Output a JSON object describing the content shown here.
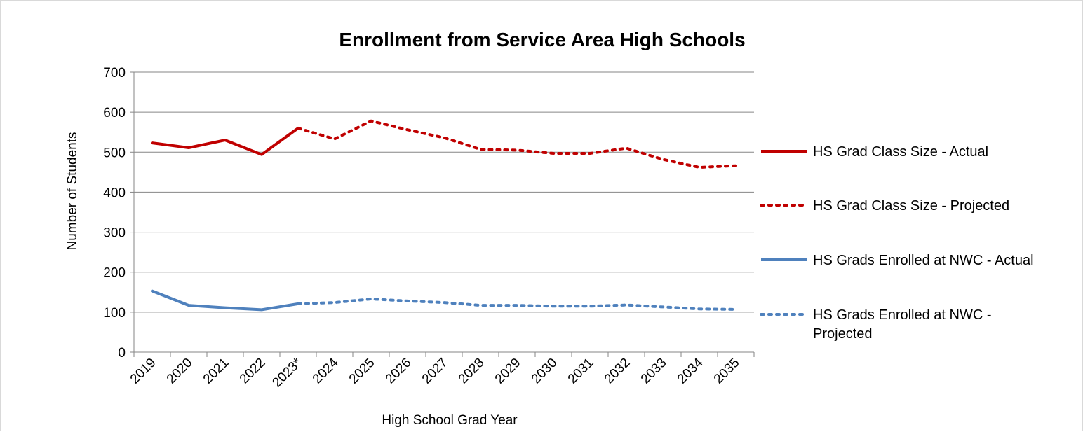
{
  "chart_data": {
    "type": "line",
    "title": "Enrollment from Service Area High Schools",
    "xlabel": "High School Grad Year",
    "ylabel": "Number of Students",
    "ylim": [
      0,
      700
    ],
    "ytick_step": 100,
    "yticks": [
      "0",
      "100",
      "200",
      "300",
      "400",
      "500",
      "600",
      "700"
    ],
    "categories": [
      "2019",
      "2020",
      "2021",
      "2022",
      "2023*",
      "2024",
      "2025",
      "2026",
      "2027",
      "2028",
      "2029",
      "2030",
      "2031",
      "2032",
      "2033",
      "2034",
      "2035"
    ],
    "grid": "horizontal",
    "legend_position": "right",
    "series": [
      {
        "name": "HS Grad Class Size - Actual",
        "legend_lines": [
          "HS Grad Class Size - Actual"
        ],
        "color": "#c00000",
        "style": "solid",
        "values": [
          523,
          511,
          530,
          494,
          560,
          null,
          null,
          null,
          null,
          null,
          null,
          null,
          null,
          null,
          null,
          null,
          null
        ]
      },
      {
        "name": "HS Grad Class Size - Projected",
        "legend_lines": [
          "HS Grad Class Size - Projected"
        ],
        "color": "#c00000",
        "style": "dotted",
        "values": [
          null,
          null,
          null,
          null,
          560,
          533,
          578,
          556,
          536,
          507,
          505,
          497,
          497,
          510,
          482,
          462,
          466
        ]
      },
      {
        "name": "HS Grads Enrolled at NWC - Actual",
        "legend_lines": [
          "HS Grads Enrolled at NWC - Actual"
        ],
        "color": "#4f81bd",
        "style": "solid",
        "values": [
          153,
          117,
          111,
          106,
          121,
          null,
          null,
          null,
          null,
          null,
          null,
          null,
          null,
          null,
          null,
          null,
          null
        ]
      },
      {
        "name": "HS Grads Enrolled at NWC - Projected",
        "legend_lines": [
          "HS Grads Enrolled at NWC -",
          "Projected"
        ],
        "color": "#4f81bd",
        "style": "dotted",
        "values": [
          null,
          null,
          null,
          null,
          121,
          124,
          133,
          128,
          124,
          117,
          117,
          115,
          115,
          118,
          113,
          108,
          107
        ]
      }
    ]
  }
}
